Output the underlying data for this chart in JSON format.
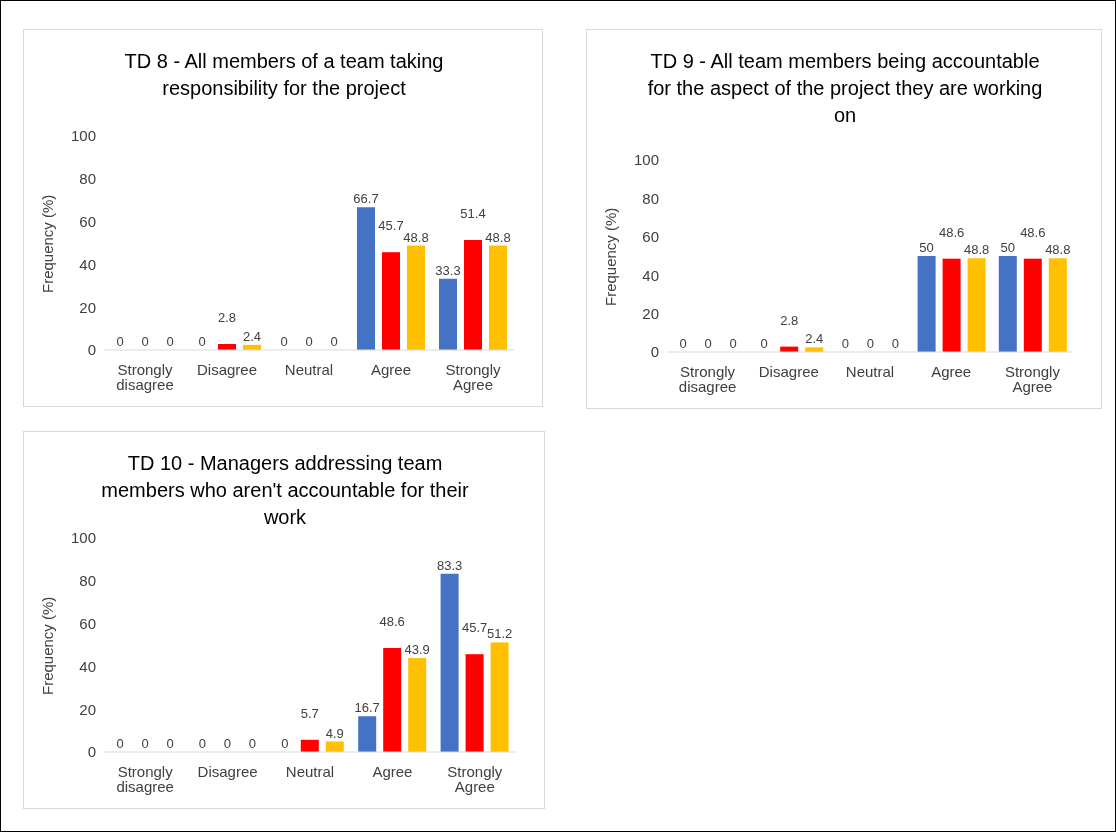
{
  "chart_data": [
    {
      "type": "bar",
      "title": "TD 8 - All members of a team taking responsibility for the project",
      "ylabel": "Frequency (%)",
      "categories": [
        "Strongly disagree",
        "Disagree",
        "Neutral",
        "Agree",
        "Strongly Agree"
      ],
      "series": [
        {
          "color": "#4472c4",
          "values": [
            0,
            0,
            0,
            66.7,
            33.3
          ]
        },
        {
          "color": "#ff0000",
          "values": [
            0,
            2.8,
            0,
            45.7,
            51.4
          ]
        },
        {
          "color": "#ffc000",
          "values": [
            0,
            2.4,
            0,
            48.8,
            48.8
          ]
        }
      ],
      "ylim": [
        0,
        100
      ],
      "yticks": [
        0,
        20,
        40,
        60,
        80,
        100
      ],
      "data_labels": true
    },
    {
      "type": "bar",
      "title": "TD 9 - All team members being accountable for the aspect of the project they are working on",
      "ylabel": "Frequency (%)",
      "categories": [
        "Strongly disagree",
        "Disagree",
        "Neutral",
        "Agree",
        "Strongly Agree"
      ],
      "series": [
        {
          "color": "#4472c4",
          "values": [
            0,
            0,
            0,
            50,
            50
          ]
        },
        {
          "color": "#ff0000",
          "values": [
            0,
            2.8,
            0,
            48.6,
            48.6
          ]
        },
        {
          "color": "#ffc000",
          "values": [
            0,
            2.4,
            0,
            48.8,
            48.8
          ]
        }
      ],
      "ylim": [
        0,
        100
      ],
      "yticks": [
        0,
        20,
        40,
        60,
        80,
        100
      ],
      "data_labels": true
    },
    {
      "type": "bar",
      "title": "TD 10 - Managers addressing team members who aren't accountable for their work",
      "ylabel": "Frequency (%)",
      "categories": [
        "Strongly disagree",
        "Disagree",
        "Neutral",
        "Agree",
        "Strongly Agree"
      ],
      "series": [
        {
          "color": "#4472c4",
          "values": [
            0,
            0,
            0,
            16.7,
            83.3
          ]
        },
        {
          "color": "#ff0000",
          "values": [
            0,
            0,
            5.7,
            48.6,
            45.7
          ]
        },
        {
          "color": "#ffc000",
          "values": [
            0,
            0,
            4.9,
            43.9,
            51.2
          ]
        }
      ],
      "ylim": [
        0,
        100
      ],
      "yticks": [
        0,
        20,
        40,
        60,
        80,
        100
      ],
      "data_labels": true
    }
  ]
}
